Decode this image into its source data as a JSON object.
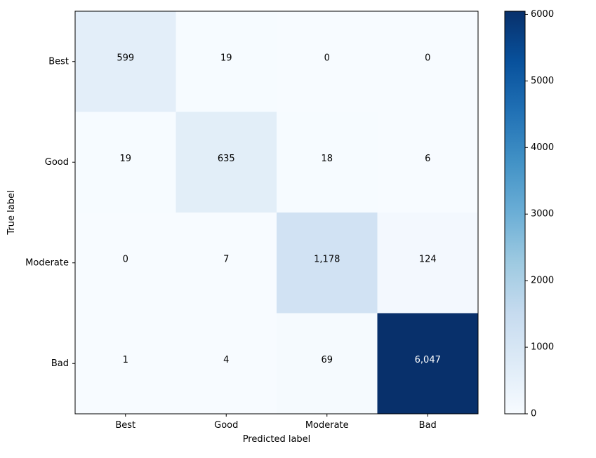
{
  "chart_data": {
    "type": "heatmap",
    "title": "",
    "xlabel": "Predicted label",
    "ylabel": "True label",
    "x_categories": [
      "Best",
      "Good",
      "Moderate",
      "Bad"
    ],
    "y_categories": [
      "Best",
      "Good",
      "Moderate",
      "Bad"
    ],
    "matrix": [
      [
        599,
        19,
        0,
        0
      ],
      [
        19,
        635,
        18,
        6
      ],
      [
        0,
        7,
        1178,
        124
      ],
      [
        1,
        4,
        69,
        6047
      ]
    ],
    "cell_labels": [
      [
        "599",
        "19",
        "0",
        "0"
      ],
      [
        "19",
        "635",
        "18",
        "6"
      ],
      [
        "0",
        "7",
        "1,178",
        "124"
      ],
      [
        "1",
        "4",
        "69",
        "6,047"
      ]
    ],
    "colorbar": {
      "colormap": "Blues",
      "range": [
        0,
        6047
      ],
      "ticks": [
        0,
        1000,
        2000,
        3000,
        4000,
        5000,
        6000
      ],
      "tick_labels": [
        "0",
        "1000",
        "2000",
        "3000",
        "4000",
        "5000",
        "6000"
      ]
    },
    "grid": false
  }
}
